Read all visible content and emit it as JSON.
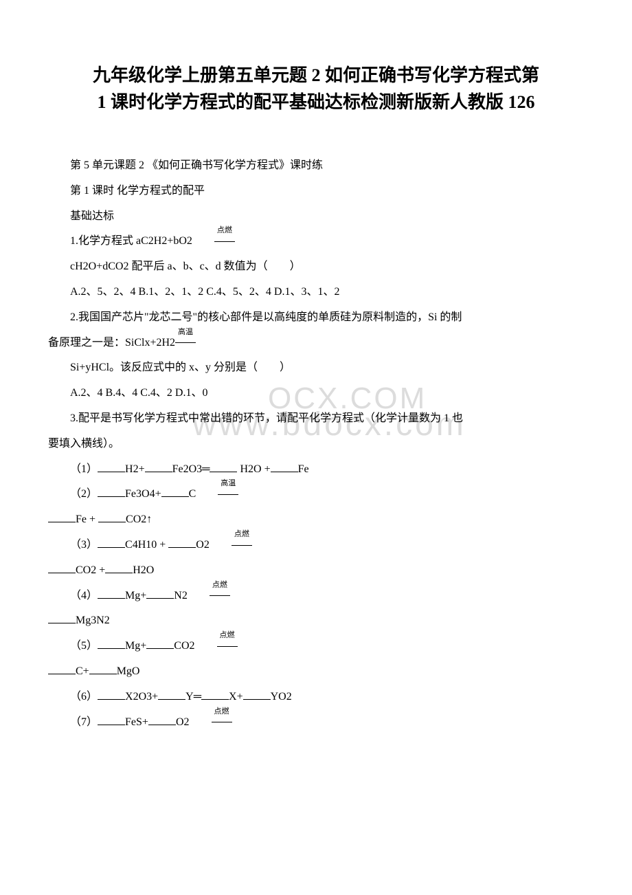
{
  "title_line1": "九年级化学上册第五单元题 2 如何正确书写化学方程式第",
  "title_line2": "1 课时化学方程式的配平基础达标检测新版新人教版 126",
  "p1": " 第 5 单元课题 2 《如何正确书写化学方程式》课时练",
  "p2": "第 1 课时 化学方程式的配平",
  "p3": "基础达标",
  "p4_a": "1.化学方程式 aC2H2+bO2",
  "p4_cond": "点燃",
  "p5": "cH2O+dCO2 配平后 a、b、c、d 数值为（　　）",
  "p6": "A.2、5、2、4 B.1、2、1、2 C.4、5、2、4 D.1、3、1、2",
  "p7_a": "2.我国国产芯片\"龙芯二号\"的核心部件是以高纯度的单质硅为原料制造的，Si 的制",
  "p7_b": "备原理之一是：SiClx+2H2",
  "p7_cond": "高温",
  "p8": "Si+yHCl。该反应式中的 x、y 分别是（　　）",
  "p9": "A.2、4 B.4、4 C.4、2 D.1、0",
  "p10_a": "3.配平是书写化学方程式中常出错的环节，请配平化学方程式（化学计量数为 1 也",
  "p10_b": "要填入横线）。",
  "q1_a": "（1）",
  "q1_b": "H2+",
  "q1_c": "Fe2O3═",
  "q1_d": " H2O +",
  "q1_e": "Fe",
  "q2_a": "（2）",
  "q2_b": "Fe3O4+",
  "q2_c": "C",
  "q2_cond": "高温",
  "q2_d": "Fe + ",
  "q2_e": "CO2↑",
  "q3_a": "（3）",
  "q3_b": "C4H10 + ",
  "q3_c": "O2",
  "q3_cond": "点燃",
  "q3_d": "CO2 +",
  "q3_e": "H2O",
  "q4_a": "（4）",
  "q4_b": "Mg+",
  "q4_c": "N2",
  "q4_cond": "点燃",
  "q4_d": "Mg3N2",
  "q5_a": "（5）",
  "q5_b": "Mg+",
  "q5_c": "CO2",
  "q5_cond": "点燃",
  "q5_d": "C+",
  "q5_e": "MgO",
  "q6_a": "（6）",
  "q6_b": "X2O3+",
  "q6_c": "Y═",
  "q6_d": "X+",
  "q6_e": "YO2",
  "q7_a": "（7）",
  "q7_b": "FeS+",
  "q7_c": "O2",
  "q7_cond": "点燃",
  "watermark1": "www.bdocx.com",
  "watermark2": "OCX.COM"
}
